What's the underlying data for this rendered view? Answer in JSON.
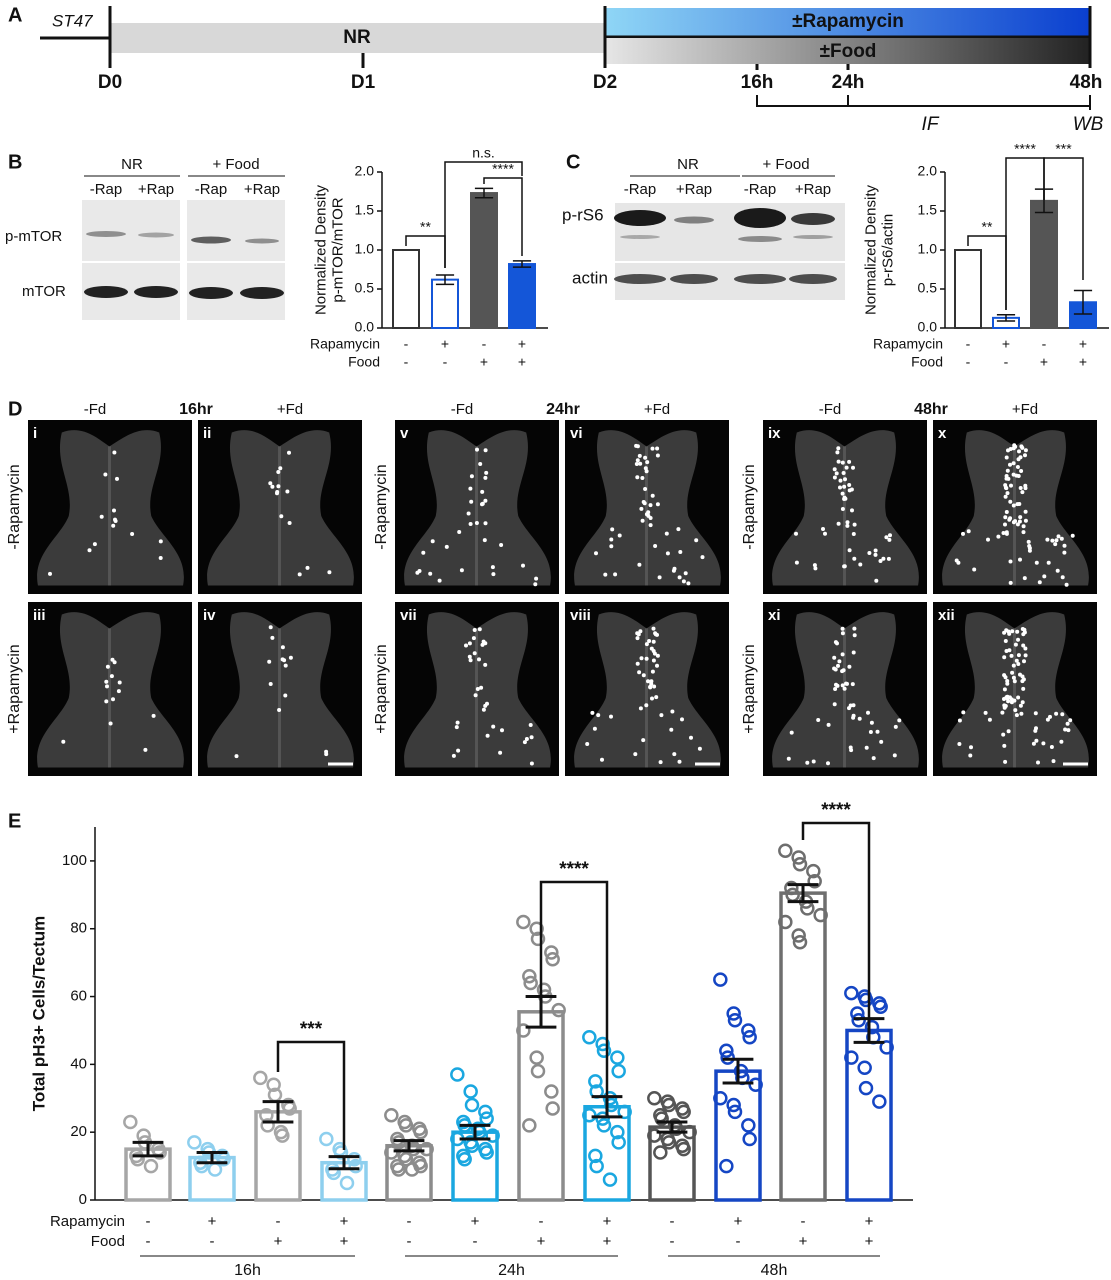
{
  "panel_a": {
    "letter": "A",
    "strain": "ST47",
    "nr": "NR",
    "days": [
      "D0",
      "D1",
      "D2"
    ],
    "treatments": [
      "±Rapamycin",
      "±Food"
    ],
    "hours": [
      "16h",
      "24h",
      "48h"
    ],
    "assays": [
      "IF",
      "WB"
    ]
  },
  "panel_b": {
    "letter": "B",
    "blot": {
      "groups": [
        "NR",
        "+ Food"
      ],
      "lanes": [
        "-Rap",
        "+Rap",
        "-Rap",
        "+Rap"
      ],
      "rows": [
        "p-mTOR",
        "mTOR"
      ]
    }
  },
  "panel_c": {
    "letter": "C",
    "blot": {
      "groups": [
        "NR",
        "+ Food"
      ],
      "lanes": [
        "-Rap",
        "+Rap",
        "-Rap",
        "+Rap"
      ],
      "rows": [
        "p-rS6",
        "actin"
      ]
    }
  },
  "panel_d": {
    "letter": "D",
    "headers": [
      {
        "minus": "-Fd",
        "time": "16hr",
        "plus": "+Fd"
      },
      {
        "minus": "-Fd",
        "time": "24hr",
        "plus": "+Fd"
      },
      {
        "minus": "-Fd",
        "time": "48hr",
        "plus": "+Fd"
      }
    ],
    "row_labels": [
      [
        "-Rapamycin",
        "+Rapamycin"
      ],
      [
        "-Rapamycin",
        "+Rapamycin"
      ],
      [
        "-Rapamycin",
        "+Rapamycin"
      ]
    ],
    "panel_ids": [
      [
        "i",
        "ii",
        "iii",
        "iv"
      ],
      [
        "v",
        "vi",
        "vii",
        "viii"
      ],
      [
        "ix",
        "x",
        "xi",
        "xii"
      ]
    ]
  },
  "panel_e": {
    "letter": "E"
  },
  "chart_data": [
    {
      "type": "bar",
      "ylabel": [
        "Normalized Density",
        "p-mTOR/mTOR"
      ],
      "row_labels": [
        "Rapamycin",
        "Food"
      ],
      "rapamycin": [
        "-",
        "+",
        "-",
        "+"
      ],
      "food": [
        "-",
        "-",
        "+",
        "+"
      ],
      "values": [
        1.0,
        0.62,
        1.73,
        0.82
      ],
      "errors": [
        null,
        0.06,
        0.06,
        0.04
      ],
      "colors": [
        "#333333",
        "#1456d8",
        "#555555",
        "#1456d8"
      ],
      "filled": [
        false,
        false,
        true,
        true
      ],
      "ylim": [
        0,
        2
      ],
      "yticks": [
        {
          "value": 0,
          "label": "0.0"
        },
        0.5,
        {
          "value": 1,
          "label": "1.0"
        },
        1.5,
        {
          "value": 2,
          "label": "2.0"
        }
      ],
      "significance": [
        "**",
        "n.s.",
        "****"
      ]
    },
    {
      "type": "bar",
      "ylabel": [
        "Normalized Density",
        "p-rS6/actin"
      ],
      "row_labels": [
        "Rapamycin",
        "Food"
      ],
      "rapamycin": [
        "-",
        "+",
        "-",
        "+"
      ],
      "food": [
        "-",
        "-",
        "+",
        "+"
      ],
      "values": [
        1.0,
        0.13,
        1.63,
        0.33
      ],
      "errors": [
        null,
        0.04,
        0.15,
        0.15
      ],
      "colors": [
        "#333333",
        "#1456d8",
        "#555555",
        "#1456d8"
      ],
      "filled": [
        false,
        false,
        true,
        true
      ],
      "ylim": [
        0,
        2
      ],
      "yticks": [
        {
          "value": 0,
          "label": "0.0"
        },
        0.5,
        {
          "value": 1,
          "label": "1.0"
        },
        1.5,
        {
          "value": 2,
          "label": "2.0"
        }
      ],
      "significance": [
        "**",
        "****",
        "***"
      ]
    },
    {
      "type": "bar",
      "ylabel": [
        "Total pH3+ Cells/Tectum"
      ],
      "row_labels": [
        "Rapamycin",
        "Food"
      ],
      "rapamycin": [
        "-",
        "+",
        "-",
        "+",
        "-",
        "+",
        "-",
        "+",
        "-",
        "+",
        "-",
        "+"
      ],
      "food": [
        "-",
        "-",
        "+",
        "+",
        "-",
        "-",
        "+",
        "+",
        "-",
        "-",
        "+",
        "+"
      ],
      "groups": [
        "16h",
        "24h",
        "48h"
      ],
      "values": [
        15,
        12.5,
        26,
        11,
        16,
        20,
        55.5,
        27.5,
        21.5,
        38,
        90.5,
        50
      ],
      "errors": [
        2,
        1.5,
        3,
        1.8,
        1.5,
        2,
        4.5,
        3,
        1.5,
        3.5,
        2.5,
        3.5
      ],
      "points": [
        [
          23,
          19,
          17,
          15,
          14,
          13,
          12,
          10
        ],
        [
          17,
          15,
          14,
          13,
          12,
          11,
          10,
          9
        ],
        [
          36,
          34,
          31,
          28,
          27,
          25,
          22,
          20,
          19
        ],
        [
          18,
          15,
          14,
          12,
          10,
          9,
          8,
          5
        ],
        [
          25,
          23,
          22,
          21,
          20,
          18,
          17,
          16,
          15,
          15,
          14,
          13,
          12,
          11,
          10,
          10,
          9,
          9
        ],
        [
          37,
          32,
          28,
          26,
          24,
          23,
          22,
          21,
          20,
          19,
          18,
          17,
          16,
          15,
          14,
          13,
          12
        ],
        [
          82,
          80,
          77,
          73,
          71,
          66,
          64,
          62,
          60,
          56,
          50,
          42,
          38,
          32,
          27,
          22
        ],
        [
          48,
          46,
          44,
          42,
          38,
          35,
          32,
          30,
          28,
          26,
          25,
          24,
          22,
          20,
          17,
          13,
          10,
          6
        ],
        [
          30,
          29,
          28,
          27,
          26,
          25,
          24,
          22,
          21,
          20,
          19,
          18,
          17,
          16,
          15,
          14
        ],
        [
          65,
          55,
          53,
          50,
          48,
          44,
          42,
          38,
          36,
          34,
          30,
          28,
          26,
          22,
          18,
          10
        ],
        [
          103,
          101,
          99,
          97,
          94,
          92,
          90,
          88,
          86,
          84,
          82,
          78,
          76
        ],
        [
          61,
          60,
          59,
          58,
          57,
          55,
          53,
          51,
          48,
          45,
          42,
          39,
          33,
          29
        ]
      ],
      "colors": [
        "#a6a6a6",
        "#8ecfee",
        "#a6a6a6",
        "#8ecfee",
        "#8c8c8c",
        "#1aa7e0",
        "#8c8c8c",
        "#1aa7e0",
        "#555555",
        "#1546c4",
        "#6e6e6e",
        "#1546c4"
      ],
      "filled": [
        false,
        false,
        false,
        false,
        false,
        false,
        false,
        false,
        false,
        false,
        false,
        false
      ],
      "ylim": [
        0,
        110
      ],
      "yticks": [
        0,
        20,
        40,
        60,
        80,
        100
      ],
      "significance": [
        "***",
        "****",
        "****"
      ]
    }
  ]
}
